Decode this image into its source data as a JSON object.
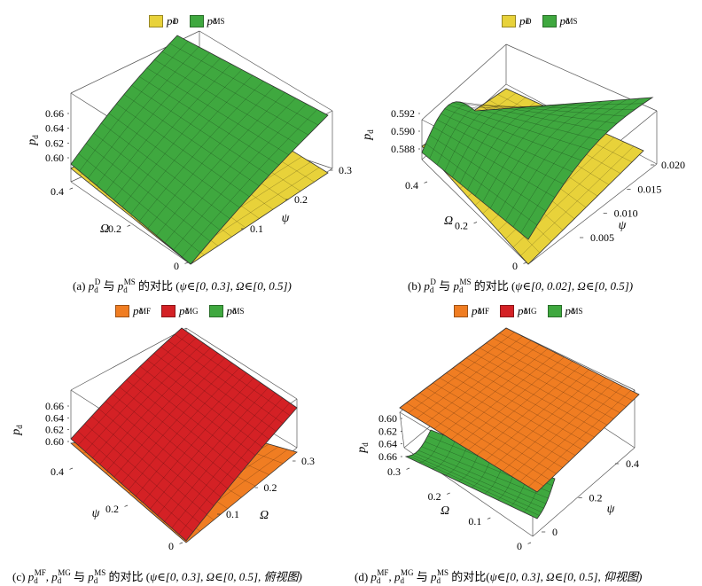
{
  "colors": {
    "D": "#e8d23a",
    "MS": "#3fa83f",
    "MF": "#f07d22",
    "MG": "#d42125",
    "edge": "#333333",
    "mesh": "rgba(0,0,0,0.35)"
  },
  "chart_data": [
    {
      "id": "a",
      "type": "surface3d",
      "title": "",
      "legend": [
        {
          "key": "D",
          "label_main": "p",
          "label_sub": "d",
          "label_sup": "D"
        },
        {
          "key": "MS",
          "label_main": "p",
          "label_sub": "d",
          "label_sup": "MS"
        }
      ],
      "zlabel": "p",
      "zlabel_sub": "d",
      "xlabel": "Ω",
      "ylabel": "ψ",
      "z_ticks": [
        "0.66",
        "0.64",
        "0.62",
        "0.60"
      ],
      "x_ticks": [
        "0.4",
        "0.2",
        "0"
      ],
      "y_ticks": [
        "0.3",
        "0.2",
        "0.1"
      ],
      "xlim": [
        0,
        0.5
      ],
      "ylim": [
        0,
        0.3
      ],
      "caption": {
        "prefix": "(a) ",
        "mid": " 与 ",
        "suffix": " 的对比 (",
        "range": "ψ∈[0, 0.3], Ω∈[0, 0.5])"
      }
    },
    {
      "id": "b",
      "type": "surface3d",
      "title": "",
      "legend": [
        {
          "key": "D",
          "label_main": "p",
          "label_sub": "d",
          "label_sup": "D"
        },
        {
          "key": "MS",
          "label_main": "p",
          "label_sub": "d",
          "label_sup": "MS"
        }
      ],
      "zlabel": "p",
      "zlabel_sub": "d",
      "xlabel": "Ω",
      "ylabel": "ψ",
      "z_ticks": [
        "0.592",
        "0.590",
        "0.588"
      ],
      "x_ticks": [
        "0.4",
        "0.2",
        "0"
      ],
      "y_ticks": [
        "0.020",
        "0.015",
        "0.010",
        "0.005"
      ],
      "xlim": [
        0,
        0.5
      ],
      "ylim": [
        0,
        0.02
      ],
      "caption": {
        "prefix": "(b) ",
        "mid": " 与 ",
        "suffix": " 的对比 (",
        "range": "ψ∈[0, 0.02], Ω∈[0, 0.5])"
      }
    },
    {
      "id": "c",
      "type": "surface3d",
      "title": "",
      "legend": [
        {
          "key": "MF",
          "label_main": "p",
          "label_sub": "d",
          "label_sup": "MF"
        },
        {
          "key": "MG",
          "label_main": "p",
          "label_sub": "d",
          "label_sup": "MG"
        },
        {
          "key": "MS",
          "label_main": "p",
          "label_sub": "d",
          "label_sup": "MS"
        }
      ],
      "zlabel": "p",
      "zlabel_sub": "d",
      "xlabel": "ψ",
      "ylabel": "Ω",
      "z_ticks": [
        "0.66",
        "0.64",
        "0.62",
        "0.60"
      ],
      "x_ticks": [
        "0.4",
        "0.2",
        "0"
      ],
      "y_ticks": [
        "0.3",
        "0.2",
        "0.1"
      ],
      "caption": {
        "prefix": "(c) ",
        "sep": ", ",
        "mid": " 与 ",
        "suffix": " 的对比 (",
        "range": "ψ∈[0, 0.3], Ω∈[0, 0.5], 俯视图)"
      }
    },
    {
      "id": "d",
      "type": "surface3d",
      "title": "",
      "legend": [
        {
          "key": "MF",
          "label_main": "p",
          "label_sub": "d",
          "label_sup": "MF"
        },
        {
          "key": "MG",
          "label_main": "p",
          "label_sub": "d",
          "label_sup": "MG"
        },
        {
          "key": "MS",
          "label_main": "p",
          "label_sub": "d",
          "label_sup": "MS"
        }
      ],
      "zlabel": "p",
      "zlabel_sub": "d",
      "xlabel": "Ω",
      "ylabel": "ψ",
      "z_ticks": [
        "0.60",
        "0.62",
        "0.64",
        "0.66"
      ],
      "x_ticks": [
        "0.3",
        "0.2",
        "0.1",
        "0"
      ],
      "y_ticks": [
        "0.4",
        "0.2",
        "0"
      ],
      "caption": {
        "prefix": "(d) ",
        "sep": ", ",
        "mid": " 与 ",
        "suffix": " 的对比(",
        "range": "ψ∈[0, 0.3], Ω∈[0, 0.5], 仰视图)"
      }
    }
  ]
}
